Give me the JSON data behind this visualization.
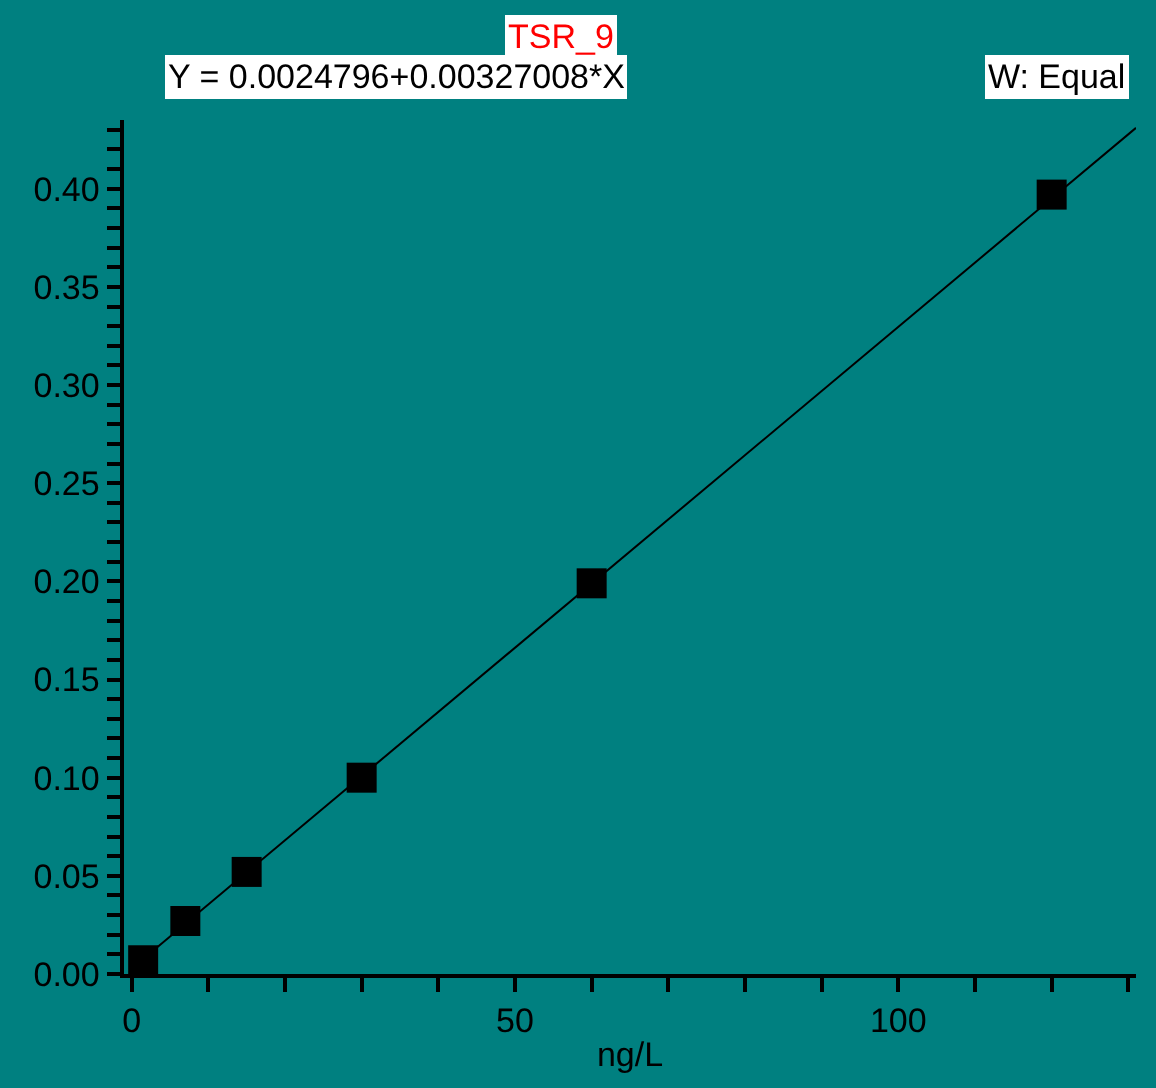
{
  "chart_data": {
    "type": "scatter",
    "title": "TSR_9",
    "annotations": [
      "Y = 0.0024796+0.00327008*X",
      "W: Equal"
    ],
    "xlabel": "ng/L",
    "series": [
      {
        "color": "#000000",
        "marker": "square",
        "x": [
          1.5,
          7,
          15,
          30,
          60,
          120
        ],
        "values": [
          0.007,
          0.027,
          0.052,
          0.1,
          0.199,
          0.397
        ]
      },
      {
        "type": "line",
        "color": "#000000",
        "marker": "none",
        "line_style": "solid",
        "x": [
          1,
          131
        ],
        "values": [
          0.006,
          0.431
        ]
      }
    ],
    "xlim": [
      -1,
      131
    ],
    "ylim": [
      0,
      0.435
    ],
    "xticks": [
      0,
      {
        "value": 10,
        "label": null
      },
      {
        "value": 20,
        "label": null
      },
      {
        "value": 30,
        "label": null
      },
      {
        "value": 40,
        "label": null
      },
      50,
      {
        "value": 60,
        "label": null
      },
      {
        "value": 70,
        "label": null
      },
      {
        "value": 80,
        "label": null
      },
      {
        "value": 90,
        "label": null
      },
      100,
      {
        "value": 110,
        "label": null
      },
      {
        "value": 120,
        "label": null
      },
      {
        "value": 130,
        "label": null
      }
    ],
    "yticks": [
      {
        "value": 0,
        "label": "0.00"
      },
      {
        "value": 0.01,
        "label": null
      },
      {
        "value": 0.02,
        "label": null
      },
      {
        "value": 0.03,
        "label": null
      },
      {
        "value": 0.04,
        "label": null
      },
      {
        "value": 0.05,
        "label": "0.05"
      },
      {
        "value": 0.06,
        "label": null
      },
      {
        "value": 0.07,
        "label": null
      },
      {
        "value": 0.08,
        "label": null
      },
      {
        "value": 0.09,
        "label": null
      },
      {
        "value": 0.1,
        "label": "0.10"
      },
      {
        "value": 0.11,
        "label": null
      },
      {
        "value": 0.12,
        "label": null
      },
      {
        "value": 0.13,
        "label": null
      },
      {
        "value": 0.14,
        "label": null
      },
      {
        "value": 0.15,
        "label": "0.15"
      },
      {
        "value": 0.16,
        "label": null
      },
      {
        "value": 0.17,
        "label": null
      },
      {
        "value": 0.18,
        "label": null
      },
      {
        "value": 0.19,
        "label": null
      },
      {
        "value": 0.2,
        "label": "0.20"
      },
      {
        "value": 0.21,
        "label": null
      },
      {
        "value": 0.22,
        "label": null
      },
      {
        "value": 0.23,
        "label": null
      },
      {
        "value": 0.24,
        "label": null
      },
      {
        "value": 0.25,
        "label": "0.25"
      },
      {
        "value": 0.26,
        "label": null
      },
      {
        "value": 0.27,
        "label": null
      },
      {
        "value": 0.28,
        "label": null
      },
      {
        "value": 0.29,
        "label": null
      },
      {
        "value": 0.3,
        "label": "0.30"
      },
      {
        "value": 0.31,
        "label": null
      },
      {
        "value": 0.32,
        "label": null
      },
      {
        "value": 0.33,
        "label": null
      },
      {
        "value": 0.34,
        "label": null
      },
      {
        "value": 0.35,
        "label": "0.35"
      },
      {
        "value": 0.36,
        "label": null
      },
      {
        "value": 0.37,
        "label": null
      },
      {
        "value": 0.38,
        "label": null
      },
      {
        "value": 0.39,
        "label": null
      },
      {
        "value": 0.4,
        "label": "0.40"
      },
      {
        "value": 0.41,
        "label": null
      },
      {
        "value": 0.42,
        "label": null
      },
      {
        "value": 0.43,
        "label": null
      }
    ],
    "grid": false
  }
}
